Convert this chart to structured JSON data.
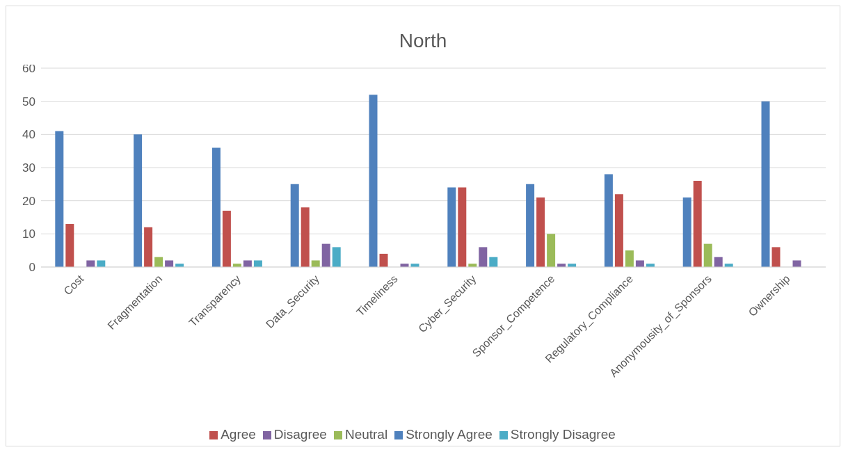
{
  "chart_data": {
    "type": "bar",
    "title": "North",
    "categories": [
      "Cost",
      "Fragmentation",
      "Transparency",
      "Data_Security",
      "Timeliness",
      "Cyber_Security",
      "Sponsor_Competence",
      "Regulatory_Compliance",
      "Anonymousity_of_Sponsors",
      "Ownership"
    ],
    "series": [
      {
        "name": "Strongly Agree",
        "color": "#4f81bd",
        "values": [
          41,
          40,
          36,
          25,
          52,
          24,
          25,
          28,
          21,
          50
        ]
      },
      {
        "name": "Agree",
        "color": "#c0504d",
        "values": [
          13,
          12,
          17,
          18,
          4,
          24,
          21,
          22,
          26,
          6
        ]
      },
      {
        "name": "Neutral",
        "color": "#9bbb59",
        "values": [
          0,
          3,
          1,
          2,
          0,
          1,
          10,
          5,
          7,
          0
        ]
      },
      {
        "name": "Disagree",
        "color": "#8064a2",
        "values": [
          2,
          2,
          2,
          7,
          1,
          6,
          1,
          2,
          3,
          2
        ]
      },
      {
        "name": "Strongly Disagree",
        "color": "#4bacc6",
        "values": [
          2,
          1,
          2,
          6,
          1,
          3,
          1,
          1,
          1,
          0
        ]
      }
    ],
    "ylim": [
      0,
      60
    ],
    "yticks": [
      0,
      10,
      20,
      30,
      40,
      50,
      60
    ],
    "grid": "y",
    "legend": "bottom"
  }
}
